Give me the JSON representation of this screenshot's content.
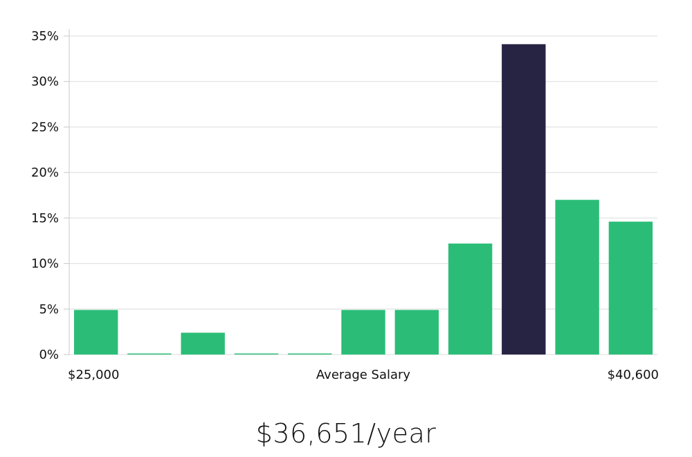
{
  "chart_data": {
    "type": "bar",
    "categories": [
      "1",
      "2",
      "3",
      "4",
      "5",
      "6",
      "7",
      "8",
      "9",
      "10",
      "11"
    ],
    "values": [
      4.9,
      0.0,
      2.4,
      0.0,
      0.0,
      4.9,
      4.9,
      12.2,
      34.1,
      17.0,
      14.6
    ],
    "highlight_index": 8,
    "ylim": [
      0,
      35
    ],
    "yticks": [
      0,
      5,
      10,
      15,
      20,
      25,
      30,
      35
    ],
    "ytick_suffix": "%",
    "x_min_label": "$25,000",
    "x_max_label": "$40,600",
    "xlabel": "Average Salary",
    "grid": true,
    "colors": {
      "bar": "#2bbd77",
      "highlight": "#272443",
      "grid": "#dcdcdc",
      "axis": "#c8c8c8"
    }
  },
  "salary_text": "$36,651/year"
}
